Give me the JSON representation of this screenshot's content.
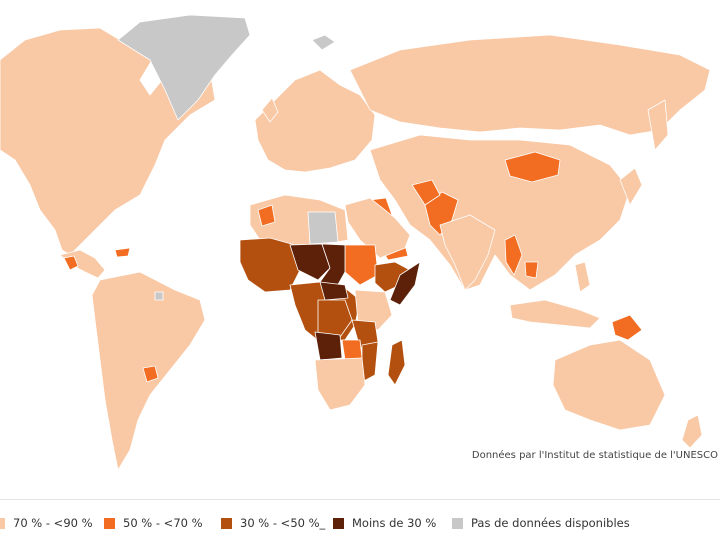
{
  "credit": "Données par l'Institut de statistique de l'UNESCO",
  "legend": [
    {
      "label": "70 % - <90 %",
      "color": "#f9c8a5"
    },
    {
      "label": "50 % - <70 %",
      "color": "#f26d21"
    },
    {
      "label": "30 % - <50 %_",
      "color": "#b4500f"
    },
    {
      "label": "Moins de 30 %",
      "color": "#5c2108"
    },
    {
      "label": "Pas de données disponibles",
      "color": "#c8c8c8"
    }
  ],
  "map": {
    "background": "#ffffff",
    "classes": {
      "light": "#f9c8a5",
      "mid": "#f26d21",
      "dark": "#b4500f",
      "darkest": "#5c2108",
      "nodata": "#c8c8c8"
    }
  }
}
